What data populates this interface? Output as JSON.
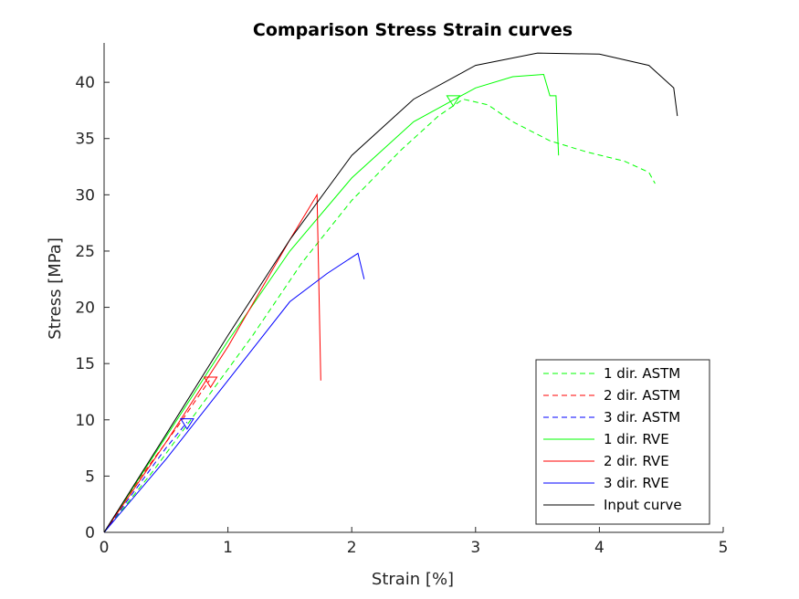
{
  "chart_data": {
    "type": "line",
    "title": "Comparison Stress Strain curves",
    "xlabel": "Strain [%]",
    "ylabel": "Stress [MPa]",
    "xlim": [
      0,
      5
    ],
    "ylim": [
      0,
      43.5
    ],
    "xticks": [
      0,
      1,
      2,
      3,
      4,
      5
    ],
    "yticks": [
      0,
      5,
      10,
      15,
      20,
      25,
      30,
      35,
      40
    ],
    "grid": false,
    "legend_position": "bottom-right",
    "series": [
      {
        "name": "1 dir. ASTM",
        "color": "#00ff00",
        "dash": true,
        "x": [
          0,
          0.4,
          0.8,
          1.2,
          1.6,
          2.0,
          2.4,
          2.7,
          2.9,
          3.1,
          3.3,
          3.6,
          3.9,
          4.2,
          4.4,
          4.45
        ],
        "y": [
          0,
          5.5,
          11.5,
          17.5,
          24,
          29.5,
          34,
          37,
          38.5,
          38,
          36.5,
          34.8,
          33.8,
          33,
          32,
          31
        ]
      },
      {
        "name": "2 dir. ASTM",
        "color": "#ff0000",
        "dash": true,
        "x": [
          0,
          0.3,
          0.6,
          0.85
        ],
        "y": [
          0,
          5,
          9.5,
          13.5
        ]
      },
      {
        "name": "3 dir. ASTM",
        "color": "#0000ff",
        "dash": true,
        "x": [
          0,
          0.3,
          0.5,
          0.67
        ],
        "y": [
          0,
          4.5,
          7.5,
          9.8
        ]
      },
      {
        "name": "1 dir. RVE",
        "color": "#00ff00",
        "dash": false,
        "x": [
          0,
          0.5,
          1.0,
          1.5,
          2.0,
          2.5,
          3.0,
          3.3,
          3.55,
          3.6,
          3.65,
          3.67
        ],
        "y": [
          0,
          8.5,
          17,
          25,
          31.5,
          36.5,
          39.5,
          40.5,
          40.7,
          38.8,
          38.8,
          33.5
        ]
      },
      {
        "name": "2 dir. RVE",
        "color": "#ff0000",
        "dash": false,
        "x": [
          0,
          0.5,
          1.0,
          1.5,
          1.72,
          1.75
        ],
        "y": [
          0,
          8,
          16.5,
          26,
          30,
          13.5
        ]
      },
      {
        "name": "3 dir. RVE",
        "color": "#0000ff",
        "dash": false,
        "x": [
          0,
          0.5,
          1.0,
          1.5,
          1.8,
          2.05,
          2.1
        ],
        "y": [
          0,
          6.5,
          13.5,
          20.5,
          23,
          24.8,
          22.5
        ]
      },
      {
        "name": "Input curve",
        "color": "#000000",
        "dash": false,
        "x": [
          0,
          0.5,
          1.0,
          1.5,
          2.0,
          2.5,
          3.0,
          3.5,
          4.0,
          4.4,
          4.6,
          4.63
        ],
        "y": [
          0,
          8.7,
          17.5,
          26,
          33.5,
          38.5,
          41.5,
          42.6,
          42.5,
          41.5,
          39.5,
          37
        ]
      }
    ],
    "markers": [
      {
        "x": 2.82,
        "y": 38.4,
        "color": "#00ff00"
      },
      {
        "x": 0.86,
        "y": 13.4,
        "color": "#ff0000"
      },
      {
        "x": 0.67,
        "y": 9.7,
        "color": "#0000ff"
      }
    ]
  }
}
